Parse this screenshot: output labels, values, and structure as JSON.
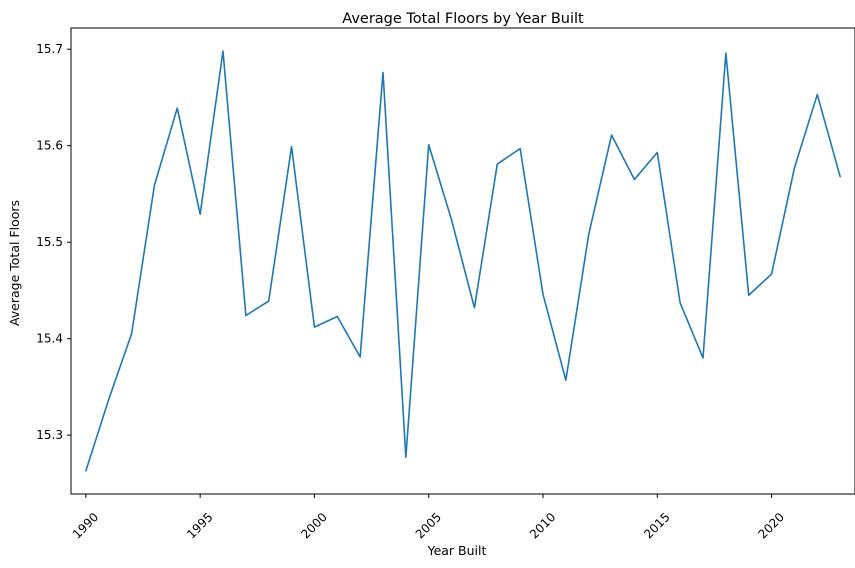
{
  "chart_data": {
    "type": "line",
    "title": "Average Total Floors by Year Built",
    "xlabel": "Year Built",
    "ylabel": "Average Total Floors",
    "xlim": [
      1989.35,
      2023.65
    ],
    "ylim": [
      15.239,
      15.722
    ],
    "xticks": [
      1990,
      1995,
      2000,
      2005,
      2010,
      2015,
      2020
    ],
    "yticks": [
      15.3,
      15.4,
      15.5,
      15.6,
      15.7
    ],
    "ytick_labels": [
      "15.3",
      "15.4",
      "15.5",
      "15.6",
      "15.7"
    ],
    "grid": false,
    "legend": "none",
    "series": [
      {
        "color": "#1f77b4",
        "x": [
          1990,
          1991,
          1992,
          1993,
          1994,
          1995,
          1996,
          1997,
          1998,
          1999,
          2000,
          2001,
          2002,
          2003,
          2004,
          2005,
          2006,
          2007,
          2008,
          2009,
          2010,
          2011,
          2012,
          2013,
          2014,
          2015,
          2016,
          2017,
          2018,
          2019,
          2020,
          2021,
          2022,
          2023
        ],
        "y": [
          15.263,
          15.337,
          15.405,
          15.559,
          15.639,
          15.529,
          15.698,
          15.424,
          15.439,
          15.599,
          15.412,
          15.423,
          15.381,
          15.676,
          15.277,
          15.601,
          15.523,
          15.432,
          15.581,
          15.597,
          15.446,
          15.357,
          15.508,
          15.611,
          15.565,
          15.593,
          15.437,
          15.38,
          15.696,
          15.445,
          15.467,
          15.577,
          15.653,
          15.568
        ]
      }
    ]
  }
}
